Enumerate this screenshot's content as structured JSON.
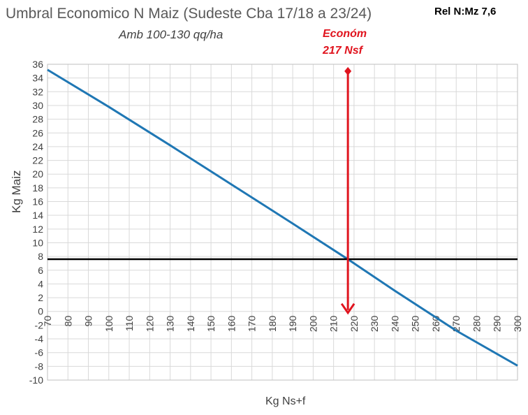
{
  "chart_data": {
    "type": "line",
    "title": "Umbral Economico N Maiz (Sudeste Cba 17/18 a 23/24)",
    "subtitle": "Amb 100-130 qq/ha",
    "ratio_label": "Rel N:Mz 7,6",
    "xlabel": "Kg Ns+f",
    "ylabel": "Kg Maiz",
    "xlim": [
      70,
      300
    ],
    "ylim": [
      -10,
      36
    ],
    "xticks": [
      70,
      80,
      90,
      100,
      110,
      120,
      130,
      140,
      150,
      160,
      170,
      180,
      190,
      200,
      210,
      220,
      230,
      240,
      250,
      260,
      270,
      280,
      290,
      300
    ],
    "yticks": [
      -10,
      -8,
      -6,
      -4,
      -2,
      0,
      2,
      4,
      6,
      8,
      10,
      12,
      14,
      16,
      18,
      20,
      22,
      24,
      26,
      28,
      30,
      32,
      34,
      36
    ],
    "grid": true,
    "series": [
      {
        "color": "#1f77b4",
        "x": [
          70,
          100,
          130,
          160,
          190,
          217,
          240,
          270,
          300
        ],
        "y": [
          35.2,
          29.8,
          24.2,
          18.5,
          12.8,
          7.6,
          3.0,
          -2.8,
          -7.9
        ]
      }
    ],
    "hline": {
      "y": 7.6,
      "color": "#000000"
    },
    "vline": {
      "x": 217,
      "y_top": 35,
      "y_bottom": -0.2,
      "color": "#e0141e"
    },
    "annotation": {
      "line1": "Económ",
      "line2": "217 Nsf",
      "color": "#e0141e"
    }
  }
}
